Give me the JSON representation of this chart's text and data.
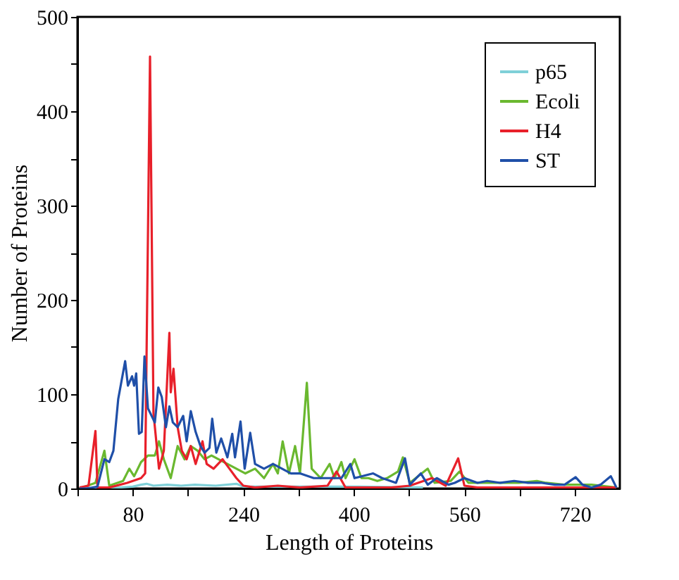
{
  "chart_data": {
    "type": "line",
    "xlabel": "Length of Proteins",
    "ylabel": "Number of Proteins",
    "xlim": [
      0,
      785
    ],
    "ylim": [
      0,
      500
    ],
    "xticks": [
      {
        "value": 0,
        "label": null
      },
      80,
      {
        "value": 160,
        "label": null
      },
      240,
      {
        "value": 320,
        "label": null
      },
      400,
      {
        "value": 480,
        "label": null
      },
      560,
      {
        "value": 640,
        "label": null
      },
      720
    ],
    "yticks": [
      0,
      {
        "value": 50,
        "label": null
      },
      100,
      {
        "value": 150,
        "label": null
      },
      200,
      {
        "value": 250,
        "label": null
      },
      300,
      {
        "value": 350,
        "label": null
      },
      400,
      {
        "value": 450,
        "label": null
      },
      500
    ],
    "grid": false,
    "legend": "top right",
    "marker": "none",
    "line_style": "solid",
    "series": [
      {
        "name": "p65",
        "color": "#7fd0d8",
        "x": [
          3,
          40,
          80,
          92,
          100,
          110,
          130,
          150,
          170,
          200,
          230,
          240,
          300,
          400,
          500
        ],
        "values": [
          0,
          0,
          2,
          4,
          5,
          3,
          4,
          3,
          4,
          3,
          5,
          2,
          2,
          2,
          1
        ]
      },
      {
        "name": "Ecoli",
        "color": "#6ab82f",
        "x": [
          3,
          26,
          39,
          46,
          66,
          75,
          82,
          92,
          102,
          112,
          118,
          125,
          135,
          145,
          155,
          164,
          174,
          184,
          194,
          204,
          217,
          230,
          243,
          257,
          270,
          283,
          290,
          297,
          306,
          315,
          322,
          332,
          339,
          352,
          365,
          372,
          382,
          388,
          401,
          411,
          421,
          434,
          448,
          464,
          471,
          481,
          507,
          517,
          540,
          553,
          566,
          586,
          612,
          639,
          665,
          678,
          705,
          744,
          780
        ],
        "values": [
          0,
          6,
          40,
          3,
          8,
          21,
          13,
          28,
          35,
          35,
          50,
          31,
          11,
          45,
          31,
          45,
          40,
          31,
          35,
          31,
          26,
          21,
          16,
          21,
          11,
          26,
          16,
          50,
          16,
          45,
          16,
          112,
          21,
          11,
          26,
          11,
          28,
          11,
          31,
          11,
          11,
          8,
          11,
          18,
          33,
          6,
          21,
          6,
          8,
          18,
          6,
          6,
          6,
          6,
          8,
          6,
          4,
          4,
          1
        ]
      },
      {
        "name": "H4",
        "color": "#e8202a",
        "x": [
          3,
          16,
          26,
          29,
          46,
          72,
          92,
          98,
          105,
          110,
          118,
          125,
          133,
          135,
          139,
          145,
          151,
          158,
          164,
          171,
          181,
          187,
          197,
          210,
          220,
          230,
          240,
          257,
          290,
          322,
          362,
          375,
          388,
          415,
          454,
          481,
          513,
          533,
          551,
          560,
          579,
          645,
          711,
          780
        ],
        "values": [
          1,
          3,
          61,
          1,
          1,
          6,
          11,
          16,
          458,
          80,
          21,
          40,
          165,
          102,
          127,
          65,
          40,
          31,
          45,
          26,
          50,
          26,
          21,
          31,
          21,
          11,
          3,
          1,
          3,
          1,
          3,
          18,
          1,
          1,
          1,
          3,
          11,
          3,
          32,
          3,
          1,
          1,
          1,
          1
        ]
      },
      {
        "name": "ST",
        "color": "#1f4fa8",
        "x": [
          3,
          13,
          29,
          39,
          46,
          52,
          59,
          69,
          73,
          79,
          82,
          85,
          89,
          93,
          97,
          102,
          112,
          117,
          122,
          128,
          133,
          138,
          145,
          153,
          158,
          164,
          171,
          178,
          184,
          191,
          195,
          201,
          208,
          217,
          224,
          228,
          236,
          242,
          250,
          257,
          270,
          283,
          296,
          309,
          322,
          342,
          362,
          382,
          395,
          401,
          428,
          441,
          461,
          474,
          481,
          497,
          507,
          520,
          537,
          546,
          560,
          579,
          593,
          612,
          632,
          652,
          672,
          691,
          705,
          721,
          731,
          744,
          757,
          772,
          780
        ],
        "values": [
          0,
          0,
          2,
          31,
          28,
          40,
          95,
          135,
          109,
          119,
          109,
          122,
          58,
          60,
          140,
          85,
          70,
          107,
          97,
          65,
          87,
          70,
          65,
          77,
          50,
          82,
          60,
          45,
          38,
          43,
          74,
          38,
          53,
          33,
          58,
          33,
          71,
          21,
          59,
          26,
          21,
          26,
          21,
          16,
          16,
          11,
          11,
          11,
          26,
          11,
          16,
          11,
          6,
          32,
          4,
          16,
          4,
          11,
          4,
          6,
          11,
          6,
          8,
          6,
          8,
          6,
          6,
          4,
          4,
          12,
          4,
          1,
          4,
          13,
          1
        ]
      }
    ]
  }
}
